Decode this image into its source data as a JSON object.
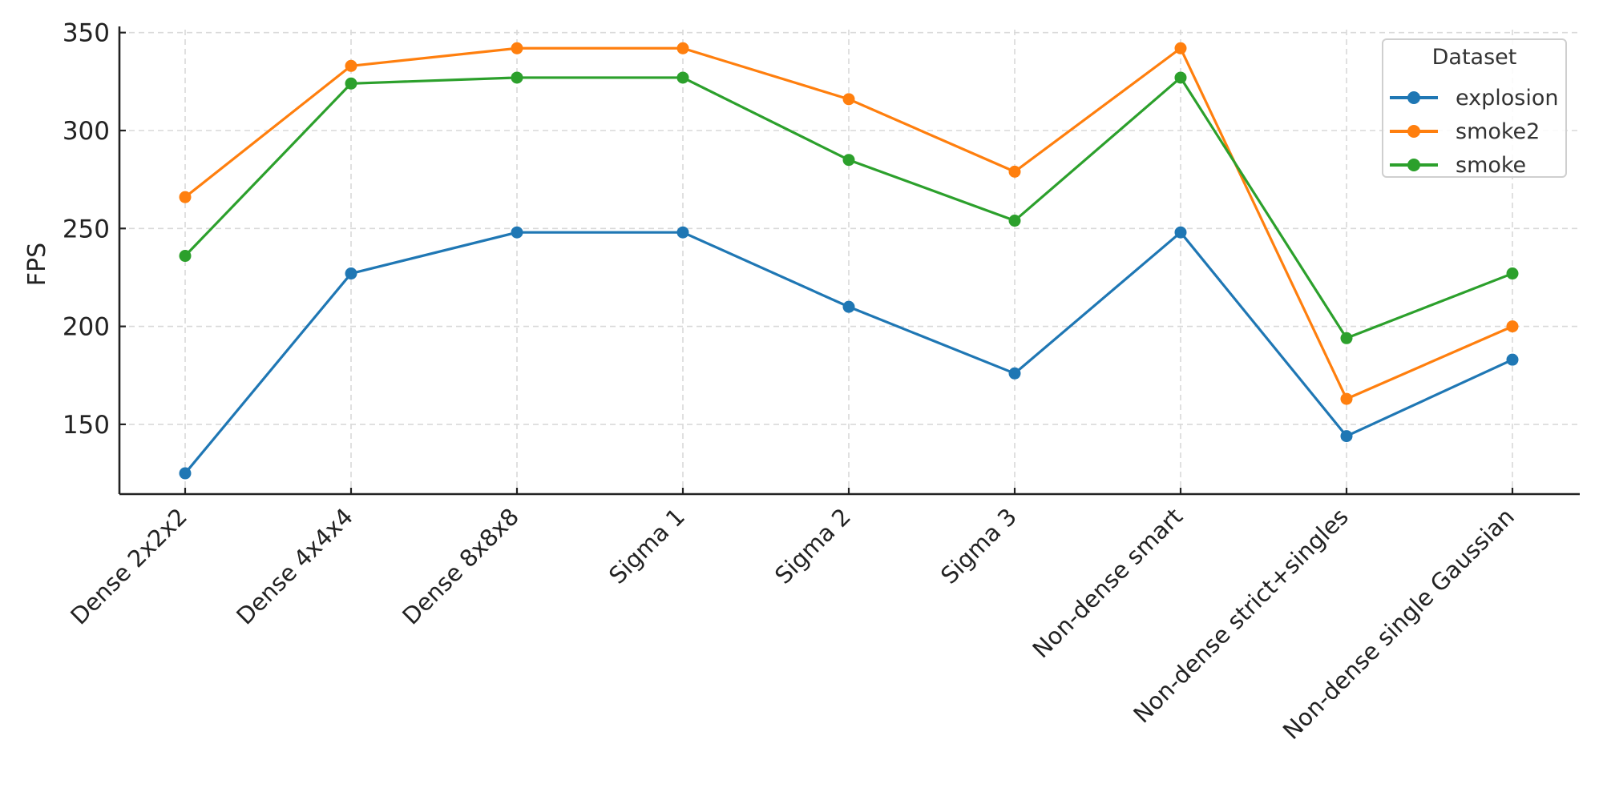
{
  "chart_data": {
    "type": "line",
    "title": "",
    "xlabel": "",
    "ylabel": "FPS",
    "categories": [
      "Dense 2x2x2",
      "Dense 4x4x4",
      "Dense 8x8x8",
      "Sigma 1",
      "Sigma 2",
      "Sigma 3",
      "Non-dense smart",
      "Non-dense strict+singles",
      "Non-dense single Gaussian"
    ],
    "series": [
      {
        "name": "explosion",
        "color": "#1f77b4",
        "values": [
          125,
          227,
          248,
          248,
          210,
          176,
          248,
          144,
          183
        ]
      },
      {
        "name": "smoke2",
        "color": "#ff7f0e",
        "values": [
          266,
          333,
          342,
          342,
          316,
          279,
          342,
          163,
          200
        ]
      },
      {
        "name": "smoke",
        "color": "#2ca02c",
        "values": [
          236,
          324,
          327,
          327,
          285,
          254,
          327,
          194,
          227
        ]
      }
    ],
    "yticks": [
      150,
      200,
      250,
      300,
      350
    ],
    "ylim": [
      114,
      353
    ],
    "grid": true,
    "legend": {
      "title": "Dataset",
      "position": "upper right"
    },
    "markers": "circle",
    "xtick_rotation": 45
  }
}
